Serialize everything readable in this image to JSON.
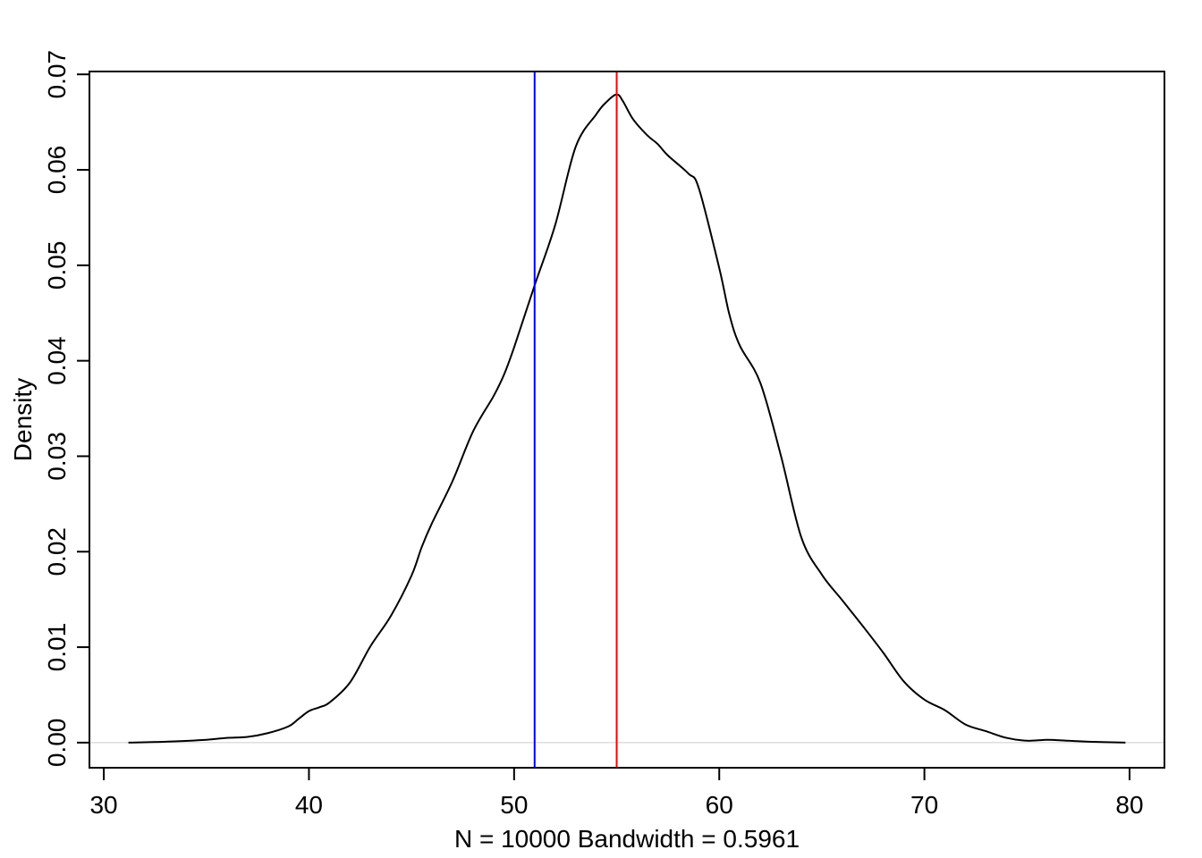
{
  "chart_data": {
    "type": "line",
    "title": "",
    "xlabel": "N = 10000   Bandwidth = 0.5961",
    "ylabel": "Density",
    "xlim": [
      29.3,
      81.7
    ],
    "ylim": [
      -0.00263,
      0.0703
    ],
    "x_ticks": [
      30,
      40,
      50,
      60,
      70,
      80
    ],
    "x_tick_labels": [
      "30",
      "40",
      "50",
      "60",
      "70",
      "80"
    ],
    "y_ticks": [
      0.0,
      0.01,
      0.02,
      0.03,
      0.04,
      0.05,
      0.06,
      0.07
    ],
    "y_tick_labels": [
      "0.00",
      "0.01",
      "0.02",
      "0.03",
      "0.04",
      "0.05",
      "0.06",
      "0.07"
    ],
    "grid": false,
    "legend": "none",
    "baseline": {
      "y": 0,
      "color": "#cccccc"
    },
    "series": [
      {
        "color": "#000000",
        "x": [
          31.2,
          33.0,
          35.0,
          36.0,
          37.0,
          38.0,
          39.0,
          39.5,
          40.0,
          40.5,
          41.0,
          42.0,
          43.0,
          44.0,
          45.0,
          45.5,
          46.0,
          47.0,
          48.0,
          49.0,
          49.5,
          50.0,
          51.0,
          52.0,
          53.0,
          54.0,
          54.5,
          55.0,
          55.3,
          55.8,
          56.5,
          57.0,
          57.5,
          58.5,
          59.0,
          60.0,
          60.5,
          61.0,
          62.0,
          63.0,
          64.0,
          65.0,
          66.0,
          67.0,
          68.0,
          69.0,
          70.0,
          71.0,
          72.0,
          73.0,
          74.0,
          75.0,
          76.0,
          77.0,
          78.0,
          79.8
        ],
        "y": [
          0.0,
          0.0001,
          0.0003,
          0.0005,
          0.0006,
          0.001,
          0.0017,
          0.0025,
          0.0033,
          0.0037,
          0.0042,
          0.0063,
          0.0101,
          0.0133,
          0.0175,
          0.0205,
          0.023,
          0.0274,
          0.0326,
          0.0363,
          0.0385,
          0.0414,
          0.0479,
          0.0542,
          0.0624,
          0.0658,
          0.0671,
          0.0679,
          0.0672,
          0.0653,
          0.0636,
          0.0627,
          0.0615,
          0.0596,
          0.0581,
          0.0497,
          0.0448,
          0.0416,
          0.0377,
          0.0301,
          0.0215,
          0.0176,
          0.0149,
          0.0122,
          0.0094,
          0.0064,
          0.0045,
          0.0034,
          0.0019,
          0.0012,
          0.0005,
          0.0002,
          0.0003,
          0.0002,
          0.0001,
          0.0
        ]
      }
    ],
    "vlines": [
      {
        "x": 51.0,
        "color": "#0000ff"
      },
      {
        "x": 55.0,
        "color": "#ff0000"
      }
    ]
  }
}
